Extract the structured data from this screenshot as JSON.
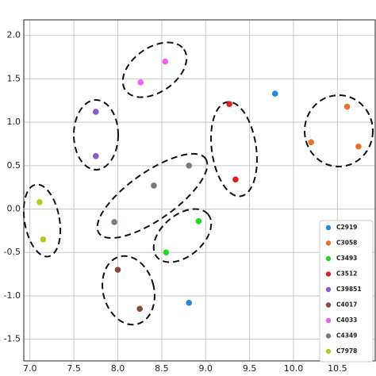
{
  "chart_data": {
    "type": "scatter",
    "xlim": [
      6.93,
      10.93
    ],
    "ylim": [
      -1.75,
      2.18
    ],
    "xticks": [
      {
        "value": 7,
        "label": "7.0"
      },
      7.5,
      {
        "value": 8,
        "label": "8.0"
      },
      8.5,
      {
        "value": 9,
        "label": "9.0"
      },
      9.5,
      {
        "value": 10,
        "label": "10.0"
      },
      10.5
    ],
    "yticks": [
      {
        "value": -1.5,
        "label": "-1.5"
      },
      {
        "value": -1,
        "label": "-1.0"
      },
      -0.5,
      {
        "value": 0,
        "label": "0.0"
      },
      0.5,
      {
        "value": 1,
        "label": "1.0"
      },
      1.5,
      {
        "value": 2,
        "label": "2.0"
      }
    ],
    "grid": true,
    "legend": "lower right",
    "series": [
      {
        "name": "C2919",
        "color": "#1f88e0",
        "x": [
          9.79,
          8.81
        ],
        "values": [
          1.33,
          -1.08
        ]
      },
      {
        "name": "C3058",
        "color": "#e8702a",
        "x": [
          10.61,
          10.2,
          10.74
        ],
        "values": [
          1.18,
          0.77,
          0.72
        ]
      },
      {
        "name": "C3493",
        "color": "#22d622",
        "x": [
          8.92,
          8.55
        ],
        "values": [
          -0.14,
          -0.5
        ]
      },
      {
        "name": "C3512",
        "color": "#e02020",
        "x": [
          9.27,
          9.34
        ],
        "values": [
          1.21,
          0.34
        ]
      },
      {
        "name": "C39851",
        "color": "#8c5ad0",
        "x": [
          7.75,
          7.75
        ],
        "values": [
          1.12,
          0.61
        ]
      },
      {
        "name": "C4017",
        "color": "#8b4a3c",
        "x": [
          8.0,
          8.25
        ],
        "values": [
          -0.7,
          -1.15
        ]
      },
      {
        "name": "C4033",
        "color": "#f060f0",
        "x": [
          8.54,
          8.26
        ],
        "values": [
          1.7,
          1.46
        ]
      },
      {
        "name": "C4349",
        "color": "#708080",
        "x": [
          8.81,
          8.41,
          7.96
        ],
        "values": [
          0.5,
          0.27,
          -0.15
        ]
      },
      {
        "name": "C7978",
        "color": "#b8c820",
        "x": [
          7.11,
          7.15
        ],
        "values": [
          0.08,
          -0.35
        ]
      }
    ]
  }
}
